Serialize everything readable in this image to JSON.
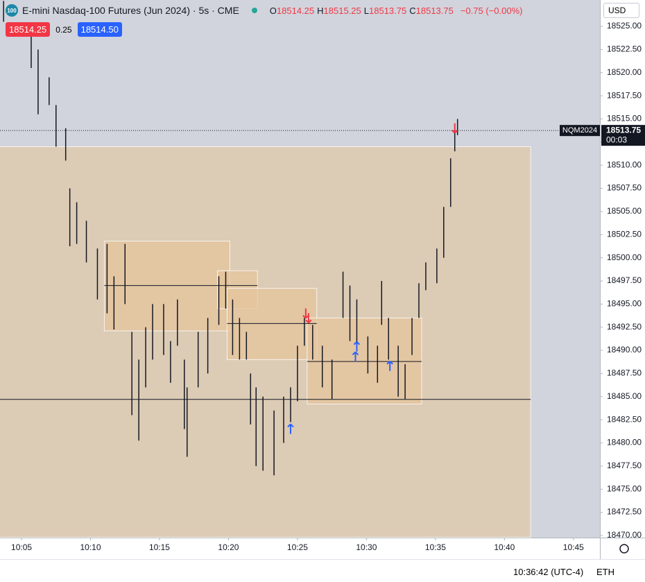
{
  "header": {
    "icon": "100",
    "title": "E-mini Nasdaq-100 Futures (Jun 2024) · 5s · CME",
    "ohlc": [
      {
        "label": "O",
        "value": "18514.25"
      },
      {
        "label": "H",
        "value": "18515.25"
      },
      {
        "label": "L",
        "value": "18513.75"
      },
      {
        "label": "C",
        "value": "18513.75"
      }
    ],
    "change": "−0.75 (−0.00%)",
    "bid": "18514.25",
    "spread": "0.25",
    "ask": "18514.50",
    "currency": "USD"
  },
  "footer": {
    "time": "10:36:42 (UTC-4)",
    "session": "ETH"
  },
  "chart_data": {
    "type": "range-bar",
    "color": "#131722",
    "x": [
      3.7,
      5.7,
      6.2,
      7.0,
      7.5,
      8.2,
      8.5,
      9.0,
      9.7,
      10.5,
      11.2,
      11.7,
      12.5,
      13.0,
      13.5,
      14.0,
      14.5,
      15.3,
      15.8,
      16.3,
      16.8,
      17.0,
      17.8,
      18.5,
      19.3,
      19.8,
      20.3,
      20.8,
      21.3,
      21.6,
      22.0,
      22.5,
      23.3,
      24.0,
      24.5,
      25.0,
      25.5,
      26.1,
      26.8,
      27.5,
      28.3,
      28.8,
      29.3,
      30.1,
      30.8,
      31.1,
      31.6,
      32.3,
      32.8,
      33.3,
      33.8,
      34.3,
      35.1,
      35.6,
      36.1,
      36.4,
      36.6
    ],
    "highs": [
      18527.75,
      18524,
      18522.5,
      18519.5,
      18516.5,
      18514,
      18507.5,
      18506,
      18504,
      18501,
      18501.5,
      18498,
      18501.5,
      18492,
      18489,
      18492.5,
      18495,
      18495,
      18491,
      18495.5,
      18489,
      18486,
      18492,
      18493.5,
      18498,
      18498.5,
      18495.5,
      18493.5,
      18492,
      18487.5,
      18486,
      18485,
      18483.5,
      18485,
      18486,
      18490.5,
      18493.5,
      18492.75,
      18490.5,
      18489,
      18498.5,
      18497,
      18495.5,
      18491.5,
      18490.5,
      18497.5,
      18493.5,
      18490.5,
      18488.5,
      18493.5,
      18497.25,
      18499.5,
      18501,
      18505.5,
      18510.75,
      18514,
      18515
    ],
    "lows": [
      18525.5,
      18520.5,
      18515.5,
      18516.5,
      18512,
      18510.5,
      18501.25,
      18501.5,
      18499.5,
      18495.5,
      18494,
      18492.25,
      18495,
      18483,
      18480.25,
      18486,
      18489,
      18489.5,
      18486.5,
      18490.5,
      18481.5,
      18478.5,
      18486,
      18487.5,
      18492.75,
      18494.5,
      18489.5,
      18489,
      18489,
      18482,
      18477.5,
      18477,
      18476.5,
      18480,
      18482.25,
      18484.5,
      18490.5,
      18489,
      18486,
      18484.75,
      18493.5,
      18491,
      18490.5,
      18487.5,
      18486.5,
      18492.75,
      18489,
      18485,
      18484.75,
      18489.5,
      18493.5,
      18496.5,
      18497.25,
      18500,
      18505.5,
      18511.5,
      18513.25
    ],
    "zones": [
      {
        "start": 3.4,
        "end": 41.9,
        "top": 18512,
        "bottom": 18469.8,
        "color": "#dccbb5"
      },
      {
        "start": 11.0,
        "end": 20.1,
        "top": 18501.8,
        "bottom": 18492.1,
        "color": "#e6c49c"
      },
      {
        "start": 19.2,
        "end": 22.1,
        "top": 18498.6,
        "bottom": 18494.5,
        "color": "#e6c49c"
      },
      {
        "start": 19.9,
        "end": 26.4,
        "top": 18496.7,
        "bottom": 18489.0,
        "color": "#e6c49c"
      },
      {
        "start": 25.7,
        "end": 34.0,
        "top": 18493.5,
        "bottom": 18484.2,
        "color": "#e6c49c"
      }
    ],
    "levels": [
      {
        "price": 18497.0,
        "start": 11.0,
        "end": 22.1
      },
      {
        "price": 18492.9,
        "start": 19.9,
        "end": 26.4
      },
      {
        "price": 18488.8,
        "start": 25.7,
        "end": 34.0
      },
      {
        "price": 18484.7,
        "start": 3.4,
        "end": 41.9
      }
    ],
    "markers": [
      {
        "x": 25.6,
        "price": 18494.0,
        "dir": "down"
      },
      {
        "x": 25.8,
        "price": 18493.5,
        "dir": "down"
      },
      {
        "x": 36.4,
        "price": 18514.0,
        "dir": "down"
      },
      {
        "x": 24.5,
        "price": 18481.5,
        "dir": "up"
      },
      {
        "x": 29.2,
        "price": 18489.3,
        "dir": "up"
      },
      {
        "x": 29.3,
        "price": 18490.4,
        "dir": "up"
      },
      {
        "x": 31.7,
        "price": 18488.3,
        "dir": "up"
      }
    ],
    "up_color": "#2962ff",
    "down_color": "#f23645",
    "last_price": 18513.75,
    "symbol": "NQM2024",
    "countdown": "00:03",
    "xlim": [
      3.44,
      46.92
    ],
    "ylim": [
      18469.77,
      18527.85
    ],
    "xticks": [
      {
        "value": 5,
        "label": "10:05"
      },
      {
        "value": 10,
        "label": "10:10"
      },
      {
        "value": 15,
        "label": "10:15"
      },
      {
        "value": 20,
        "label": "10:20"
      },
      {
        "value": 25,
        "label": "10:25"
      },
      {
        "value": 30,
        "label": "10:30"
      },
      {
        "value": 35,
        "label": "10:35"
      },
      {
        "value": 40,
        "label": "10:40"
      },
      {
        "value": 45,
        "label": "10:45"
      }
    ],
    "yticks": [
      {
        "value": 18525,
        "label": "18525.00"
      },
      {
        "value": 18522.5,
        "label": "18522.50"
      },
      {
        "value": 18520,
        "label": "18520.00"
      },
      {
        "value": 18517.5,
        "label": "18517.50"
      },
      {
        "value": 18515,
        "label": "18515.00"
      },
      {
        "value": 18512.5,
        "label": "18512.50"
      },
      {
        "value": 18510,
        "label": "18510.00"
      },
      {
        "value": 18507.5,
        "label": "18507.50"
      },
      {
        "value": 18505,
        "label": "18505.00"
      },
      {
        "value": 18502.5,
        "label": "18502.50"
      },
      {
        "value": 18500,
        "label": "18500.00"
      },
      {
        "value": 18497.5,
        "label": "18497.50"
      },
      {
        "value": 18495,
        "label": "18495.00"
      },
      {
        "value": 18492.5,
        "label": "18492.50"
      },
      {
        "value": 18490,
        "label": "18490.00"
      },
      {
        "value": 18487.5,
        "label": "18487.50"
      },
      {
        "value": 18485,
        "label": "18485.00"
      },
      {
        "value": 18482.5,
        "label": "18482.50"
      },
      {
        "value": 18480,
        "label": "18480.00"
      },
      {
        "value": 18477.5,
        "label": "18477.50"
      },
      {
        "value": 18475,
        "label": "18475.00"
      },
      {
        "value": 18472.5,
        "label": "18472.50"
      },
      {
        "value": 18470,
        "label": "18470.00"
      }
    ]
  }
}
